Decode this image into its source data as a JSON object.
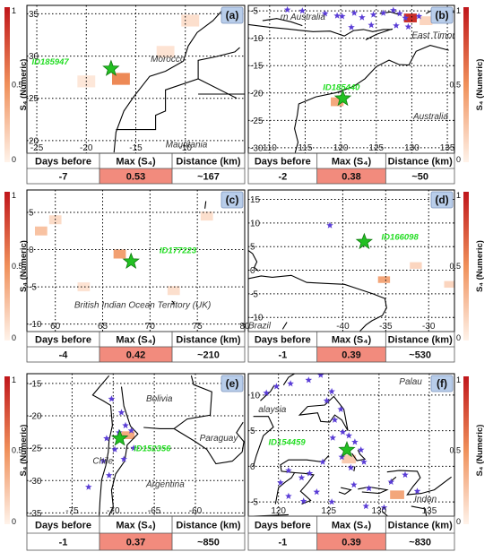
{
  "colorbar": {
    "label": "S₄ (Numeric)",
    "ticks": [
      "1",
      "0.5",
      "0"
    ],
    "colors": {
      "low": "#fff3ea",
      "mid": "#f0905a",
      "high": "#c0161b"
    }
  },
  "table_headers": [
    "Days before",
    "Max (S₄)",
    "Distance (km)"
  ],
  "colors": {
    "star": "#22c022",
    "star_stroke": "#0f7a0f",
    "id_label": "#22dd22",
    "max_cell": "#f28b7d",
    "small_star": "#5a3dd6",
    "panel_label_bg": "#b8cdea"
  },
  "panels": [
    {
      "label": "(a)",
      "id_label": "ID185947",
      "days_before": "-7",
      "max_s4": "0.53",
      "distance": "~167",
      "place_names": [
        "Morocco",
        "Mauritania"
      ],
      "x_ticks": [
        "-25",
        "-20",
        "-15",
        "-10"
      ],
      "y_ticks": [
        "35",
        "30",
        "25",
        "20"
      ],
      "chart_data": {
        "type": "heatmap",
        "xlim": [
          -26,
          -4
        ],
        "ylim": [
          18.5,
          36
        ],
        "earthquake": {
          "lon": -17.5,
          "lat": 28.5
        },
        "cells": [
          {
            "lon": -16.5,
            "lat": 27.3,
            "s4": 0.53
          },
          {
            "lon": -9.5,
            "lat": 34.2,
            "s4": 0.1
          },
          {
            "lon": -12.0,
            "lat": 30.5,
            "s4": 0.08
          },
          {
            "lon": -20.0,
            "lat": 27.0,
            "s4": 0.06
          }
        ]
      }
    },
    {
      "label": "(b)",
      "id_label": "ID185440",
      "days_before": "-2",
      "max_s4": "0.38",
      "distance": "~50",
      "place_names": [
        "rn Australia",
        "East Timor",
        "Australia"
      ],
      "x_ticks": [
        "110",
        "115",
        "120",
        "125",
        "130",
        "135"
      ],
      "y_ticks": [
        "-5",
        "-10",
        "-15",
        "-20",
        "-25",
        "-30"
      ],
      "chart_data": {
        "type": "heatmap",
        "xlim": [
          107,
          136
        ],
        "ylim": [
          -31,
          -4
        ],
        "earthquake": {
          "lon": 120.3,
          "lat": -21.0
        },
        "cells": [
          {
            "lon": 119.5,
            "lat": -21.6,
            "s4": 0.38
          },
          {
            "lon": 129.8,
            "lat": -6.3,
            "s4": 0.9
          },
          {
            "lon": 132.0,
            "lat": -6.8,
            "s4": 0.15
          }
        ]
      }
    },
    {
      "label": "(c)",
      "id_label": "ID177223",
      "days_before": "-4",
      "max_s4": "0.42",
      "distance": "~210",
      "place_names": [
        "British Indian Ocean Territory (UK)"
      ],
      "x_ticks": [
        "60",
        "65",
        "70",
        "75",
        "80"
      ],
      "y_ticks": [
        "5",
        "0",
        "-5",
        "-10"
      ],
      "chart_data": {
        "type": "heatmap",
        "xlim": [
          57,
          80
        ],
        "ylim": [
          -11,
          8
        ],
        "earthquake": {
          "lon": 68.0,
          "lat": -1.6
        },
        "cells": [
          {
            "lon": 66.8,
            "lat": -0.6,
            "s4": 0.42
          },
          {
            "lon": 58.5,
            "lat": 2.5,
            "s4": 0.25
          },
          {
            "lon": 60.0,
            "lat": 4.0,
            "s4": 0.12
          },
          {
            "lon": 72.5,
            "lat": -5.5,
            "s4": 0.1
          },
          {
            "lon": 76.0,
            "lat": 4.5,
            "s4": 0.1
          },
          {
            "lon": 63.0,
            "lat": -5.0,
            "s4": 0.08
          }
        ]
      }
    },
    {
      "label": "(d)",
      "id_label": "ID166098",
      "days_before": "-1",
      "max_s4": "0.39",
      "distance": "~530",
      "place_names": [
        "Brazil"
      ],
      "x_ticks": [
        "-40",
        "-35",
        "-30"
      ],
      "y_ticks": [
        "15",
        "10",
        "5",
        "0",
        "-5",
        "-10"
      ],
      "chart_data": {
        "type": "heatmap",
        "xlim": [
          -51,
          -27
        ],
        "ylim": [
          -13,
          17
        ],
        "earthquake": {
          "lon": -37.5,
          "lat": 6.0
        },
        "cells": [
          {
            "lon": -35.2,
            "lat": -2.0,
            "s4": 0.39
          },
          {
            "lon": -31.5,
            "lat": 1.0,
            "s4": 0.15
          },
          {
            "lon": -27.5,
            "lat": -3.0,
            "s4": 0.15
          }
        ]
      }
    },
    {
      "label": "(e)",
      "id_label": "ID152356",
      "days_before": "-1",
      "max_s4": "0.37",
      "distance": "~850",
      "place_names": [
        "Bolivia",
        "Paraguay",
        "Chile",
        "Argentina"
      ],
      "x_ticks": [
        "-75",
        "-70",
        "-65",
        "-60"
      ],
      "y_ticks": [
        "-15",
        "-20",
        "-25",
        "-30",
        "-35"
      ],
      "chart_data": {
        "type": "heatmap",
        "xlim": [
          -80.5,
          -54
        ],
        "ylim": [
          -35.5,
          -13.5
        ],
        "earthquake": {
          "lon": -69.2,
          "lat": -23.5
        },
        "cells": [
          {
            "lon": -68.2,
            "lat": -23.0,
            "s4": 0.37
          }
        ]
      }
    },
    {
      "label": "(f)",
      "id_label": "ID154459",
      "days_before": "-1",
      "max_s4": "0.39",
      "distance": "~830",
      "place_names": [
        "Palau",
        "alaysia",
        "Indon"
      ],
      "x_ticks": [
        "120",
        "125",
        "130",
        "135"
      ],
      "y_ticks": [
        "10",
        "5",
        "0",
        "-5"
      ],
      "chart_data": {
        "type": "heatmap",
        "xlim": [
          117,
          137.5
        ],
        "ylim": [
          -7,
          13
        ],
        "earthquake": {
          "lon": 126.8,
          "lat": 2.3
        },
        "cells": [
          {
            "lon": 131.8,
            "lat": -4.0,
            "s4": 0.39
          },
          {
            "lon": 127.0,
            "lat": 1.0,
            "s4": 0.2
          }
        ]
      }
    }
  ]
}
